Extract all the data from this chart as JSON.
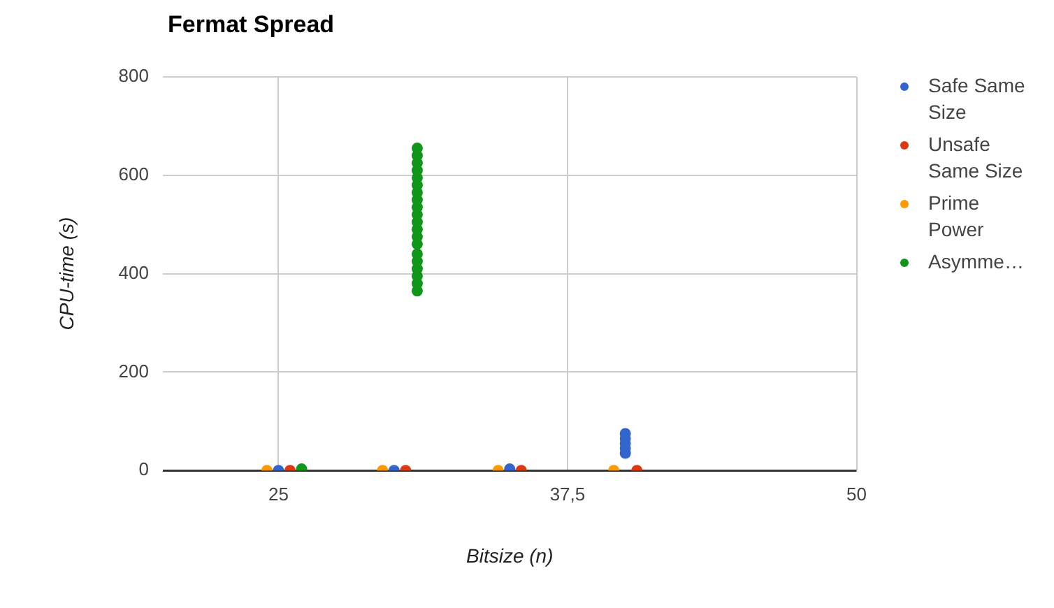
{
  "chart_data": {
    "type": "scatter",
    "title": "Fermat Spread",
    "xlabel": "Bitsize (n)",
    "ylabel": "CPU-time (s)",
    "xlim": [
      20,
      50
    ],
    "xticks": [
      25,
      {
        "value": 37.5,
        "label": "37,5"
      },
      50
    ],
    "ylim": [
      0,
      800
    ],
    "yticks": [
      0,
      200,
      400,
      600,
      800
    ],
    "grid": true,
    "legend": "right",
    "marker": "circle",
    "series": [
      {
        "name": "Safe Same Size",
        "color": "#3366cc",
        "x": [
          25,
          30,
          35,
          40,
          40,
          40,
          40,
          40
        ],
        "values": [
          0,
          0,
          3,
          35,
          45,
          55,
          65,
          75
        ]
      },
      {
        "name": "Unsafe Same Size",
        "color": "#dc3912",
        "x": [
          25.5,
          30.5,
          35.5,
          40.5
        ],
        "values": [
          0,
          0,
          0,
          0
        ]
      },
      {
        "name": "Prime Power",
        "color": "#ff9900",
        "x": [
          24.5,
          29.5,
          34.5,
          39.5
        ],
        "values": [
          0,
          0,
          0,
          0
        ]
      },
      {
        "name": "Asymme…",
        "color": "#109618",
        "x": [
          26,
          31,
          31,
          31,
          31,
          31,
          31,
          31,
          31,
          31,
          31,
          31,
          31,
          31,
          31,
          31,
          31,
          31,
          31,
          31,
          31
        ],
        "values": [
          3,
          365,
          380,
          395,
          410,
          425,
          440,
          460,
          475,
          490,
          505,
          520,
          535,
          550,
          565,
          580,
          595,
          610,
          625,
          640,
          655
        ]
      }
    ]
  }
}
